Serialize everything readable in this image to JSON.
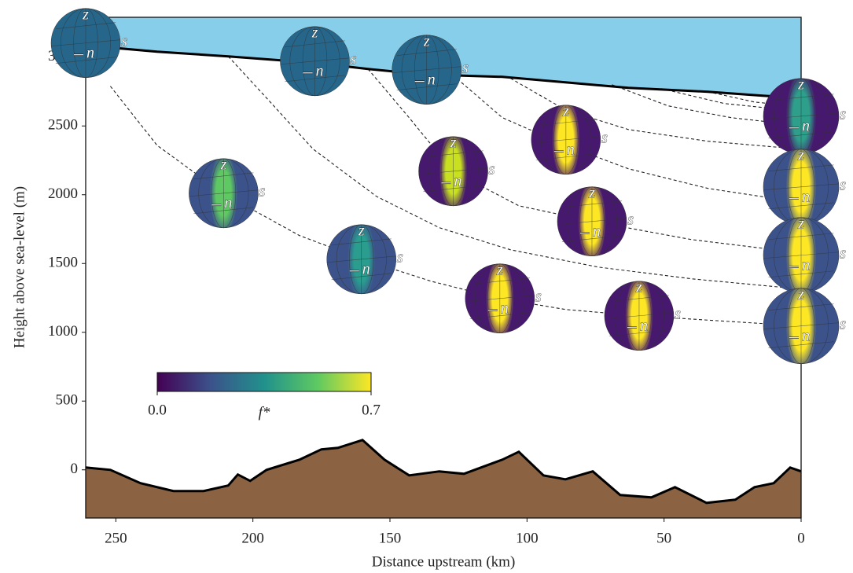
{
  "chart_data": {
    "type": "ice-section",
    "xlabel": "Distance upstream (km)",
    "ylabel": "Height above sea-level (m)",
    "xlim": [
      261,
      0
    ],
    "ylim": [
      -350,
      3290
    ],
    "xticks": [
      250,
      200,
      150,
      100,
      50,
      0
    ],
    "yticks": [
      0,
      500,
      1000,
      1500,
      2000,
      2500,
      3000
    ],
    "ice_color": "#87ceeb",
    "bed_color": "#8b6343",
    "surface": {
      "x": [
        261,
        235,
        209,
        178,
        158,
        137,
        109,
        86,
        63,
        34,
        14,
        0
      ],
      "values": [
        3086,
        3040,
        3006,
        2960,
        2914,
        2874,
        2857,
        2817,
        2777,
        2749,
        2720,
        2703
      ]
    },
    "bed": {
      "x": [
        261,
        252,
        241,
        229,
        218,
        209,
        205.5,
        201,
        195,
        183,
        175,
        169,
        160,
        152,
        143,
        132,
        123,
        109,
        103,
        94,
        86,
        76,
        66,
        54.6,
        46,
        34.5,
        24,
        17,
        10,
        4,
        0
      ],
      "values": [
        17,
        0,
        -97,
        -154,
        -154,
        -114,
        -34,
        -80,
        0,
        74,
        149,
        160,
        217,
        74,
        -40,
        -11,
        -29,
        74,
        131,
        -40,
        -69,
        -11,
        -183,
        -200,
        -126,
        -240,
        -217,
        -126,
        -97,
        17,
        -11
      ]
    },
    "flowlines": [
      {
        "x": [
          252,
          235,
          211,
          183,
          160,
          135,
          110,
          86,
          59,
          0
        ],
        "values": [
          2789,
          2360,
          2011,
          1703,
          1531,
          1371,
          1246,
          1166,
          1120,
          1046
        ]
      },
      {
        "x": [
          209,
          195,
          178,
          155,
          132,
          106,
          74,
          40,
          0
        ],
        "values": [
          3006,
          2703,
          2331,
          1989,
          1760,
          1600,
          1474,
          1389,
          1314
        ]
      },
      {
        "x": [
          158,
          143,
          127,
          103,
          76,
          40,
          0
        ],
        "values": [
          2914,
          2560,
          2171,
          1920,
          1806,
          1674,
          1577
        ]
      },
      {
        "x": [
          127,
          109,
          86,
          63,
          34,
          0
        ],
        "values": [
          2869,
          2560,
          2360,
          2189,
          2046,
          1943
        ]
      },
      {
        "x": [
          106,
          86,
          63,
          34,
          0
        ],
        "values": [
          2846,
          2617,
          2474,
          2389,
          2331
        ]
      },
      {
        "x": [
          69,
          48.5,
          25.5,
          0
        ],
        "values": [
          2800,
          2646,
          2560,
          2503
        ]
      },
      {
        "x": [
          51,
          28,
          0
        ],
        "values": [
          2771,
          2663,
          2606
        ]
      },
      {
        "x": [
          34,
          17,
          0
        ],
        "values": [
          2749,
          2674,
          2640
        ]
      }
    ],
    "spheres": {
      "x": [
        261,
        177.4,
        136.6,
        0,
        85.8,
        126.9,
        210.7,
        0,
        76.3,
        0,
        160.4,
        109.9,
        59.1,
        0
      ],
      "y": [
        3103,
        2971,
        2909,
        2571,
        2400,
        2171,
        2011,
        2057,
        1806,
        1560,
        1531,
        1246,
        1120,
        1046
      ],
      "colors": [
        [
          "#26668b",
          "#26668b"
        ],
        [
          "#26668b",
          "#26668b"
        ],
        [
          "#26668b",
          "#26668b"
        ],
        [
          "#2e9f8a",
          "#46186e"
        ],
        [
          "#fde725",
          "#46186e"
        ],
        [
          "#c8e020",
          "#46186e"
        ],
        [
          "#5ec962",
          "#3b528b"
        ],
        [
          "#fde725",
          "#3b528b"
        ],
        [
          "#fde725",
          "#46186e"
        ],
        [
          "#fde725",
          "#3b528b"
        ],
        [
          "#2a9d8f",
          "#3b528b"
        ],
        [
          "#fde725",
          "#46186e"
        ],
        [
          "#fde725",
          "#46186e"
        ],
        [
          "#fde725",
          "#3b528b"
        ]
      ]
    },
    "sphere_labels": {
      "up": "z",
      "north": "n",
      "east": "s"
    },
    "colorbar": {
      "label": "f*",
      "ticks": [
        {
          "value": 0,
          "label": "0.0"
        },
        {
          "value": 0.7,
          "label": "0.7"
        }
      ],
      "colors": [
        "#440154",
        "#3b528b",
        "#21918c",
        "#5ec962",
        "#fde725"
      ]
    }
  }
}
